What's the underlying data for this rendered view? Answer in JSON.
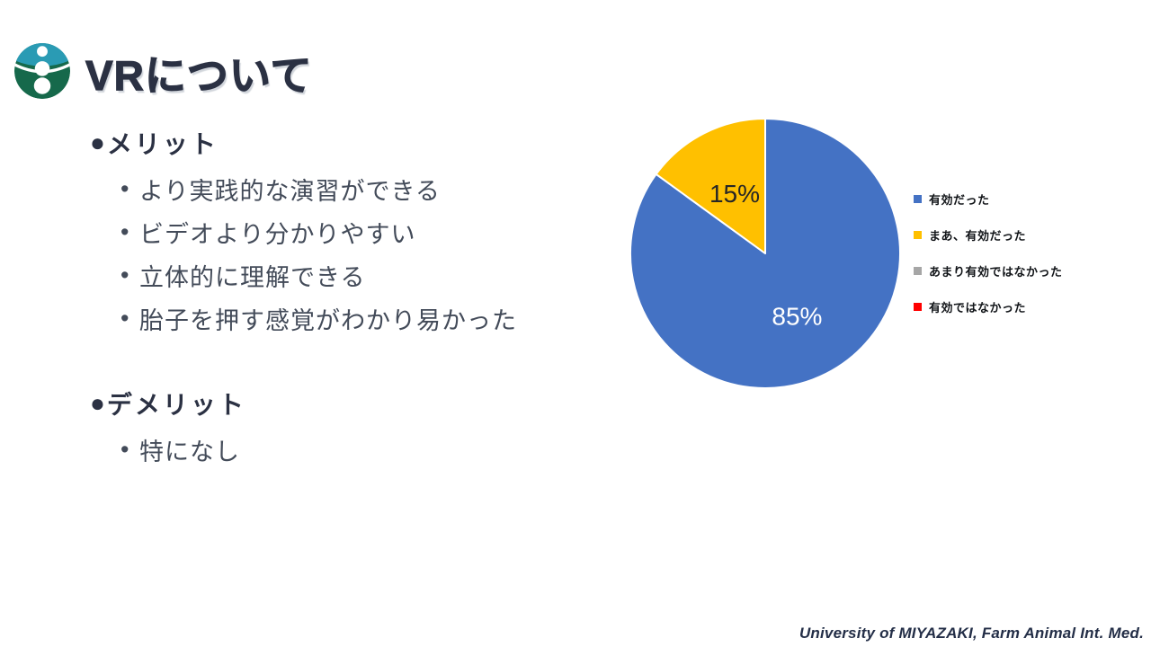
{
  "slide": {
    "title": "VRについて",
    "section_marker": "●",
    "item_marker": "•",
    "sections": [
      {
        "header": "メリット",
        "items": [
          "より実践的な演習ができる",
          "ビデオより分かりやすい",
          "立体的に理解できる",
          "胎子を押す感覚がわかり易かった"
        ]
      },
      {
        "header": "デメリット",
        "items": [
          "特になし"
        ]
      }
    ],
    "footer": "University of MIYAZAKI, Farm Animal Int. Med.",
    "logo_colors": {
      "teal": "#2A9BB4",
      "green": "#16694B",
      "figure": "#FFFFFF"
    }
  },
  "chart_data": {
    "type": "pie",
    "title": "",
    "start_angle_deg": 0,
    "direction": "clockwise",
    "legend_position": "right",
    "slices": [
      {
        "label": "有効だった",
        "value": 85,
        "color": "#4472C4",
        "data_label": "85%",
        "data_label_color": "#FFFFFF",
        "label_radius": 0.52
      },
      {
        "label": "まあ、有効だった",
        "value": 15,
        "color": "#FFC000",
        "data_label": "15%",
        "data_label_color": "#262626",
        "label_radius": 0.5
      },
      {
        "label": "あまり有効ではなかった",
        "value": 0,
        "color": "#A6A6A6"
      },
      {
        "label": "有効ではなかった",
        "value": 0,
        "color": "#FF0000"
      }
    ]
  }
}
